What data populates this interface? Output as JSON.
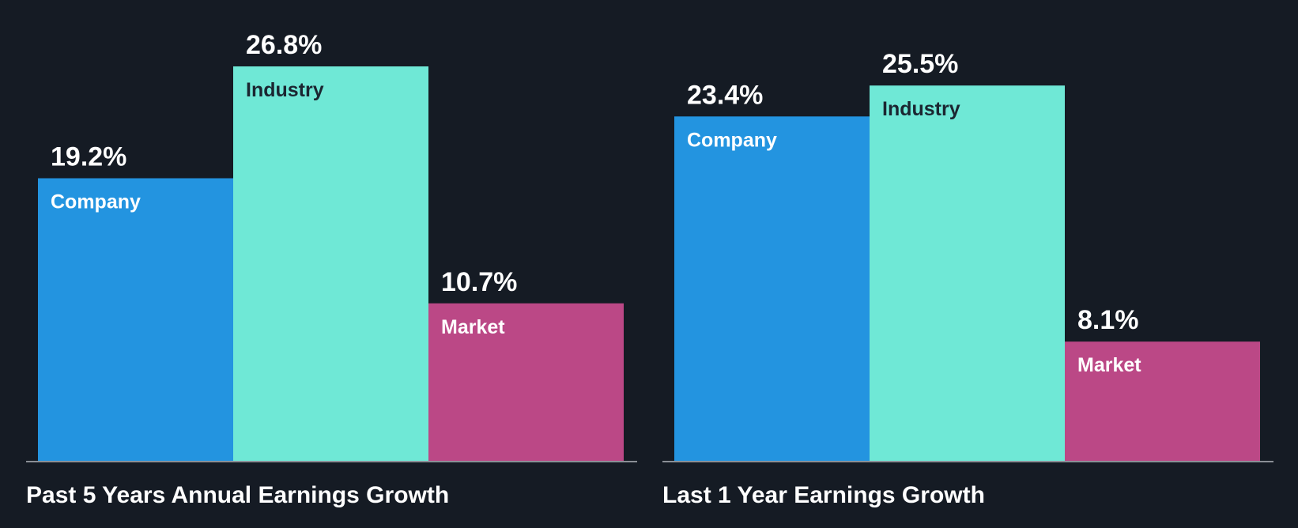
{
  "colors": {
    "background": "#151b24",
    "company": "#2394e0",
    "industry": "#6fe8d6",
    "market": "#bb4886",
    "baseline": "#8a8f96",
    "text_light": "#ffffff",
    "text_dark": "#1b2631"
  },
  "chart_data": [
    {
      "type": "bar",
      "title": "Past 5 Years Annual Earnings Growth",
      "categories": [
        "Company",
        "Industry",
        "Market"
      ],
      "values": [
        19.2,
        26.8,
        10.7
      ],
      "value_labels": [
        "19.2%",
        "26.8%",
        "10.7%"
      ],
      "ylim": [
        0,
        30
      ],
      "grid": false,
      "legend": "none"
    },
    {
      "type": "bar",
      "title": "Last 1 Year Earnings Growth",
      "categories": [
        "Company",
        "Industry",
        "Market"
      ],
      "values": [
        23.4,
        25.5,
        8.1
      ],
      "value_labels": [
        "23.4%",
        "25.5%",
        "8.1%"
      ],
      "ylim": [
        0,
        30
      ],
      "grid": false,
      "legend": "none"
    }
  ]
}
